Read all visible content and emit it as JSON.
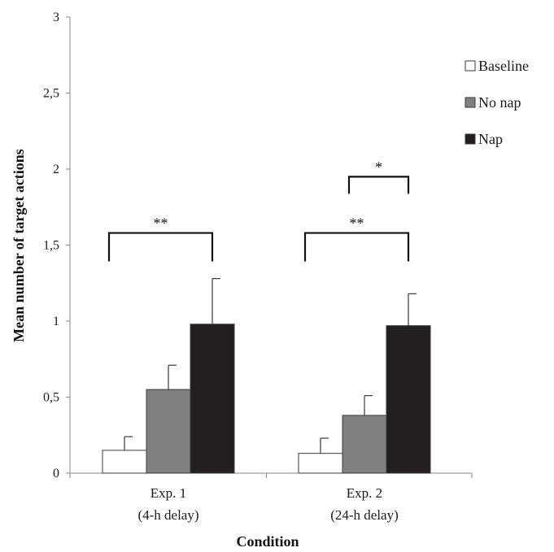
{
  "chart_data": {
    "type": "bar",
    "ylabel": "Mean number of target actions",
    "xlabel": "Condition",
    "ylim": [
      0,
      3
    ],
    "yticks": [
      "0",
      "0,5",
      "1",
      "1,5",
      "2",
      "2,5",
      "3"
    ],
    "ytick_values": [
      0,
      0.5,
      1,
      1.5,
      2,
      2.5,
      3
    ],
    "grid": false,
    "legend_position": "top-right",
    "categories": [
      {
        "line1": "Exp. 1",
        "line2": "(4-h delay)"
      },
      {
        "line1": "Exp. 2",
        "line2": "(24-h delay)"
      }
    ],
    "series": [
      {
        "name": "Baseline",
        "color": "#ffffff",
        "values": [
          0.15,
          0.13
        ],
        "errors": [
          0.09,
          0.1
        ]
      },
      {
        "name": "No nap",
        "color": "#808080",
        "values": [
          0.55,
          0.38
        ],
        "errors": [
          0.16,
          0.13
        ]
      },
      {
        "name": "Nap",
        "color": "#231f20",
        "values": [
          0.98,
          0.97
        ],
        "errors": [
          0.3,
          0.21
        ]
      }
    ],
    "significance": [
      {
        "category": 0,
        "from_series": 0,
        "to_series": 2,
        "label": "**",
        "level": 1.58
      },
      {
        "category": 1,
        "from_series": 0,
        "to_series": 2,
        "label": "**",
        "level": 1.58
      },
      {
        "category": 1,
        "from_series": 1,
        "to_series": 2,
        "label": "*",
        "level": 1.95
      }
    ]
  }
}
